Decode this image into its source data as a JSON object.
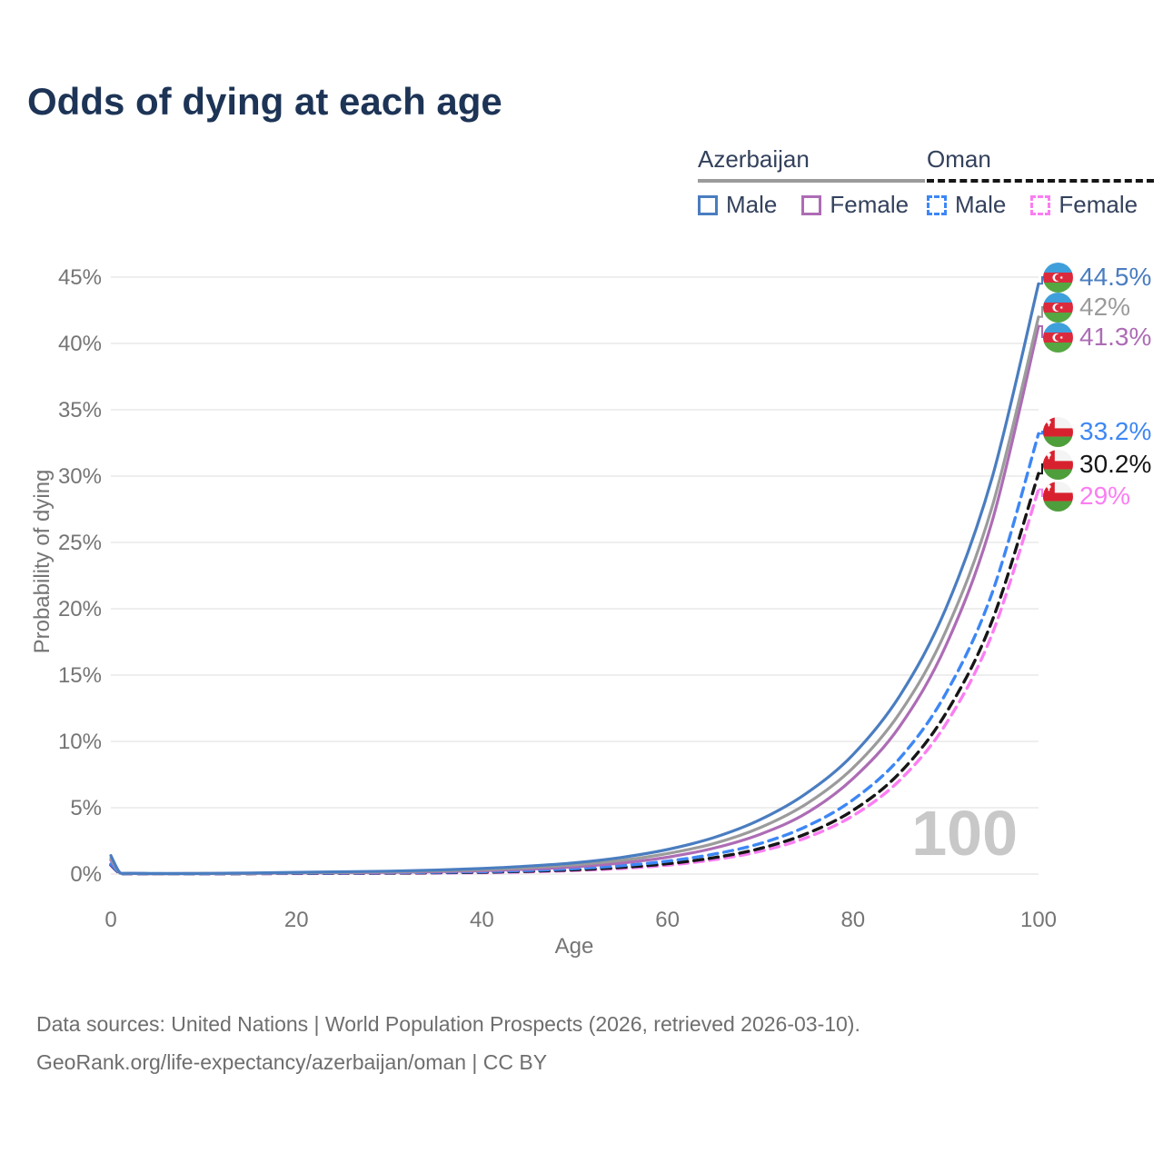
{
  "title": "Odds of dying at each age",
  "legend": {
    "groups": [
      {
        "name": "Azerbaijan",
        "line_style": "solid",
        "underline_color": "#9b9b9b",
        "items": [
          {
            "label": "Male",
            "color": "#4a7dc0",
            "dash": false
          },
          {
            "label": "Female",
            "color": "#ad6cb5",
            "dash": false
          }
        ]
      },
      {
        "name": "Oman",
        "line_style": "dashed",
        "underline_color": "#161616",
        "items": [
          {
            "label": "Male",
            "color": "#3d87f5",
            "dash": true
          },
          {
            "label": "Female",
            "color": "#fb7df2",
            "dash": true
          }
        ]
      }
    ]
  },
  "axes": {
    "x_label": "Age",
    "y_label": "Probability of dying",
    "x_range": [
      0,
      100
    ],
    "y_range": [
      0,
      45
    ],
    "x_ticks": [
      {
        "v": 0,
        "label": "0"
      },
      {
        "v": 20,
        "label": "20"
      },
      {
        "v": 40,
        "label": "40"
      },
      {
        "v": 60,
        "label": "60"
      },
      {
        "v": 80,
        "label": "80"
      },
      {
        "v": 100,
        "label": "100"
      }
    ],
    "y_ticks": [
      {
        "v": 0,
        "label": "0%"
      },
      {
        "v": 5,
        "label": "5%"
      },
      {
        "v": 10,
        "label": "10%"
      },
      {
        "v": 15,
        "label": "15%"
      },
      {
        "v": 20,
        "label": "20%"
      },
      {
        "v": 25,
        "label": "25%"
      },
      {
        "v": 30,
        "label": "30%"
      },
      {
        "v": 35,
        "label": "35%"
      },
      {
        "v": 40,
        "label": "40%"
      },
      {
        "v": 45,
        "label": "45%"
      }
    ]
  },
  "watermark": "100",
  "chart_data": {
    "type": "line",
    "title": "Odds of dying at each age",
    "xlabel": "Age",
    "ylabel": "Probability of dying",
    "x": [
      0,
      1,
      2,
      5,
      10,
      15,
      20,
      25,
      30,
      35,
      40,
      45,
      50,
      55,
      60,
      65,
      70,
      75,
      80,
      85,
      90,
      95,
      100
    ],
    "y_unit": "percent",
    "grid": "horizontal",
    "legend_position": "top-right",
    "series": [
      {
        "name": "Azerbaijan Male",
        "color": "#4a7dc0",
        "dash": false,
        "values": [
          1.4,
          0.09,
          0.06,
          0.04,
          0.05,
          0.08,
          0.13,
          0.17,
          0.22,
          0.3,
          0.42,
          0.6,
          0.85,
          1.25,
          1.85,
          2.75,
          4.1,
          6.1,
          9.0,
          13.4,
          20.0,
          29.9,
          44.5
        ]
      },
      {
        "name": "Azerbaijan Both sexes",
        "color": "#9b9b9b",
        "dash": false,
        "values": [
          1.2,
          0.08,
          0.05,
          0.03,
          0.04,
          0.06,
          0.1,
          0.13,
          0.17,
          0.24,
          0.33,
          0.48,
          0.7,
          1.03,
          1.55,
          2.3,
          3.5,
          5.3,
          8.0,
          12.1,
          18.3,
          27.7,
          42.0
        ]
      },
      {
        "name": "Azerbaijan Female",
        "color": "#ad6cb5",
        "dash": false,
        "values": [
          1.05,
          0.07,
          0.045,
          0.028,
          0.035,
          0.05,
          0.08,
          0.1,
          0.13,
          0.18,
          0.25,
          0.37,
          0.55,
          0.83,
          1.27,
          1.95,
          3.0,
          4.6,
          7.2,
          11.1,
          17.2,
          26.6,
          41.3
        ]
      },
      {
        "name": "Oman Male",
        "color": "#3d87f5",
        "dash": true,
        "values": [
          0.75,
          0.06,
          0.04,
          0.025,
          0.03,
          0.045,
          0.065,
          0.08,
          0.1,
          0.13,
          0.18,
          0.27,
          0.41,
          0.63,
          0.97,
          1.5,
          2.3,
          3.6,
          5.6,
          8.7,
          13.6,
          21.2,
          33.2
        ]
      },
      {
        "name": "Oman Both sexes",
        "color": "#161616",
        "dash": true,
        "values": [
          0.7,
          0.05,
          0.035,
          0.02,
          0.025,
          0.035,
          0.05,
          0.06,
          0.075,
          0.1,
          0.14,
          0.21,
          0.32,
          0.5,
          0.78,
          1.23,
          1.93,
          3.05,
          4.8,
          7.6,
          12.1,
          19.1,
          30.2
        ]
      },
      {
        "name": "Oman Female",
        "color": "#fb7df2",
        "dash": true,
        "values": [
          0.65,
          0.045,
          0.03,
          0.018,
          0.02,
          0.03,
          0.04,
          0.05,
          0.06,
          0.08,
          0.11,
          0.17,
          0.27,
          0.42,
          0.67,
          1.08,
          1.72,
          2.75,
          4.4,
          7.05,
          11.3,
          18.1,
          29.0
        ]
      }
    ]
  },
  "end_labels": [
    {
      "text": "44.5%",
      "color": "#4a7dc0",
      "flag": "azerbaijan",
      "series": "Azerbaijan Male"
    },
    {
      "text": "42%",
      "color": "#9b9b9b",
      "flag": "azerbaijan",
      "series": "Azerbaijan Both sexes"
    },
    {
      "text": "41.3%",
      "color": "#ad6cb5",
      "flag": "azerbaijan",
      "series": "Azerbaijan Female"
    },
    {
      "text": "33.2%",
      "color": "#3d87f5",
      "flag": "oman",
      "series": "Oman Male"
    },
    {
      "text": "30.2%",
      "color": "#161616",
      "flag": "oman",
      "series": "Oman Both sexes"
    },
    {
      "text": "29%",
      "color": "#fb7df2",
      "flag": "oman",
      "series": "Oman Female"
    }
  ],
  "footer": {
    "line1": "Data sources: United Nations | World Population Prospects (2026, retrieved 2026-03-10).",
    "line2": "GeoRank.org/life-expectancy/azerbaijan/oman | CC BY"
  },
  "colors": {
    "title": "#1d3456",
    "legend_text": "#33415c",
    "axis_text": "#757575",
    "grid": "#e9e9e9",
    "watermark": "#c8c8c8",
    "footer_text": "#6e6e6e",
    "flag_az": {
      "blue": "#3f9fdb",
      "red": "#dc2a3d",
      "green": "#55a742"
    },
    "flag_om": {
      "red": "#d8212f",
      "green": "#4f9e3c",
      "white": "#f4f4f4"
    }
  }
}
